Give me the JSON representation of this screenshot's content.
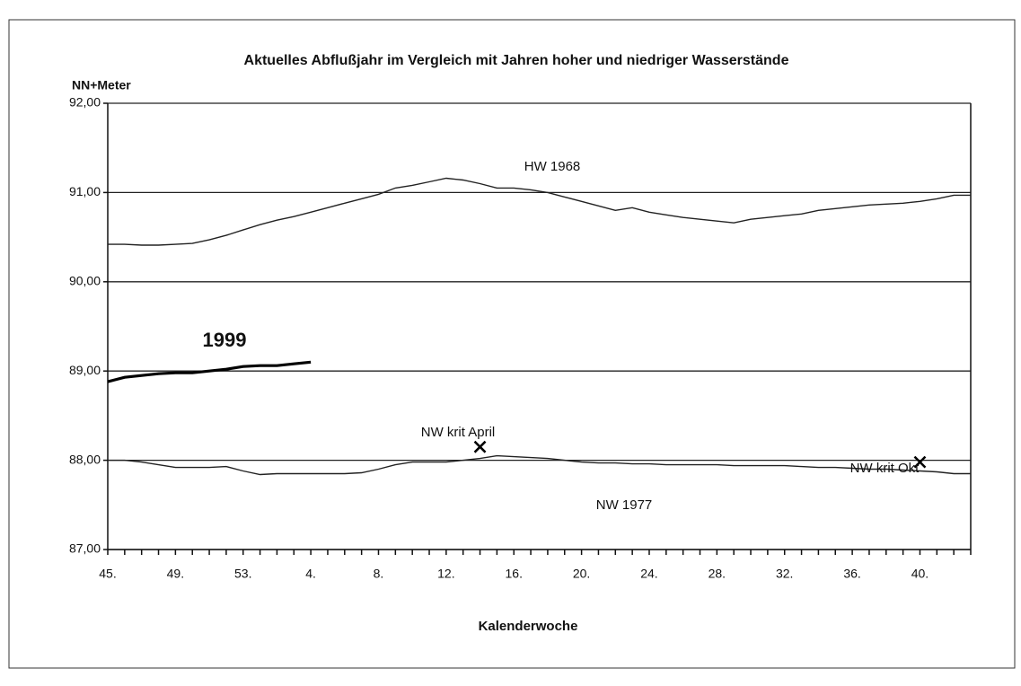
{
  "chart_data": {
    "type": "line",
    "title": "Aktuelles Abflußjahr im Vergleich mit Jahren hoher und niedriger Wasserstände",
    "y_label": "NN+Meter",
    "x_label": "Kalenderwoche",
    "categories": [
      "45.",
      null,
      null,
      null,
      "49.",
      null,
      null,
      null,
      "53.",
      null,
      null,
      null,
      "4.",
      null,
      null,
      null,
      "8.",
      null,
      null,
      null,
      "12.",
      null,
      null,
      null,
      "16.",
      null,
      null,
      null,
      "20.",
      null,
      null,
      null,
      "24.",
      null,
      null,
      null,
      "28.",
      null,
      null,
      null,
      "32.",
      null,
      null,
      null,
      "36.",
      null,
      null,
      null,
      "40.",
      null,
      null,
      null
    ],
    "ylim": [
      87,
      92
    ],
    "yticks": [
      {
        "value": 87,
        "label": "87,00"
      },
      {
        "value": 88,
        "label": "88,00"
      },
      {
        "value": 89,
        "label": "89,00"
      },
      {
        "value": 90,
        "label": "90,00"
      },
      {
        "value": 91,
        "label": "91,00"
      },
      {
        "value": 92,
        "label": "92,00"
      }
    ],
    "grid": true,
    "series": [
      {
        "name": "HW 1968",
        "color": "#222222",
        "values": [
          90.42,
          90.42,
          90.41,
          90.41,
          90.42,
          90.43,
          90.47,
          90.52,
          90.58,
          90.64,
          90.69,
          90.73,
          90.78,
          90.83,
          90.88,
          90.93,
          90.98,
          91.05,
          91.08,
          91.12,
          91.16,
          91.14,
          91.1,
          91.05,
          91.05,
          91.03,
          91.0,
          90.95,
          90.9,
          90.85,
          90.8,
          90.83,
          90.78,
          90.75,
          90.72,
          90.7,
          90.68,
          90.66,
          90.7,
          90.72,
          90.74,
          90.76,
          90.8,
          90.82,
          90.84,
          90.86,
          90.87,
          90.88,
          90.9,
          90.93,
          90.97,
          90.97
        ]
      },
      {
        "name": "NW 1977",
        "color": "#222222",
        "values": [
          88.0,
          88.0,
          87.98,
          87.95,
          87.92,
          87.92,
          87.92,
          87.93,
          87.88,
          87.84,
          87.85,
          87.85,
          87.85,
          87.85,
          87.85,
          87.86,
          87.9,
          87.95,
          87.98,
          87.98,
          87.98,
          88.0,
          88.02,
          88.05,
          88.04,
          88.03,
          88.02,
          88.0,
          87.98,
          87.97,
          87.97,
          87.96,
          87.96,
          87.95,
          87.95,
          87.95,
          87.95,
          87.94,
          87.94,
          87.94,
          87.94,
          87.93,
          87.92,
          87.92,
          87.91,
          87.9,
          87.9,
          87.89,
          87.88,
          87.87,
          87.85,
          87.85
        ]
      },
      {
        "name": "1999",
        "color": "#000000",
        "bold": true,
        "values": [
          88.88,
          88.93,
          88.95,
          88.97,
          88.98,
          88.98,
          89.0,
          89.02,
          89.05,
          89.06,
          89.06,
          89.08,
          89.1,
          null,
          null,
          null,
          null,
          null,
          null,
          null,
          null,
          null,
          null,
          null,
          null,
          null,
          null,
          null,
          null,
          null,
          null,
          null,
          null,
          null,
          null,
          null,
          null,
          null,
          null,
          null,
          null,
          null,
          null,
          null,
          null,
          null,
          null,
          null,
          null,
          null,
          null,
          null
        ]
      },
      {
        "name": "NW krit April",
        "color": "#000000",
        "marker": "x",
        "values": [
          null,
          null,
          null,
          null,
          null,
          null,
          null,
          null,
          null,
          null,
          null,
          null,
          null,
          null,
          null,
          null,
          null,
          null,
          null,
          null,
          null,
          null,
          88.15,
          null,
          null,
          null,
          null,
          null,
          null,
          null,
          null,
          null,
          null,
          null,
          null,
          null,
          null,
          null,
          null,
          null,
          null,
          null,
          null,
          null,
          null,
          null,
          null,
          null,
          null,
          null,
          null,
          null
        ]
      },
      {
        "name": "NW krit Okt",
        "color": "#000000",
        "marker": "x",
        "values": [
          null,
          null,
          null,
          null,
          null,
          null,
          null,
          null,
          null,
          null,
          null,
          null,
          null,
          null,
          null,
          null,
          null,
          null,
          null,
          null,
          null,
          null,
          null,
          null,
          null,
          null,
          null,
          null,
          null,
          null,
          null,
          null,
          null,
          null,
          null,
          null,
          null,
          null,
          null,
          null,
          null,
          null,
          null,
          null,
          null,
          null,
          null,
          null,
          87.98,
          null,
          null,
          null
        ]
      }
    ]
  }
}
